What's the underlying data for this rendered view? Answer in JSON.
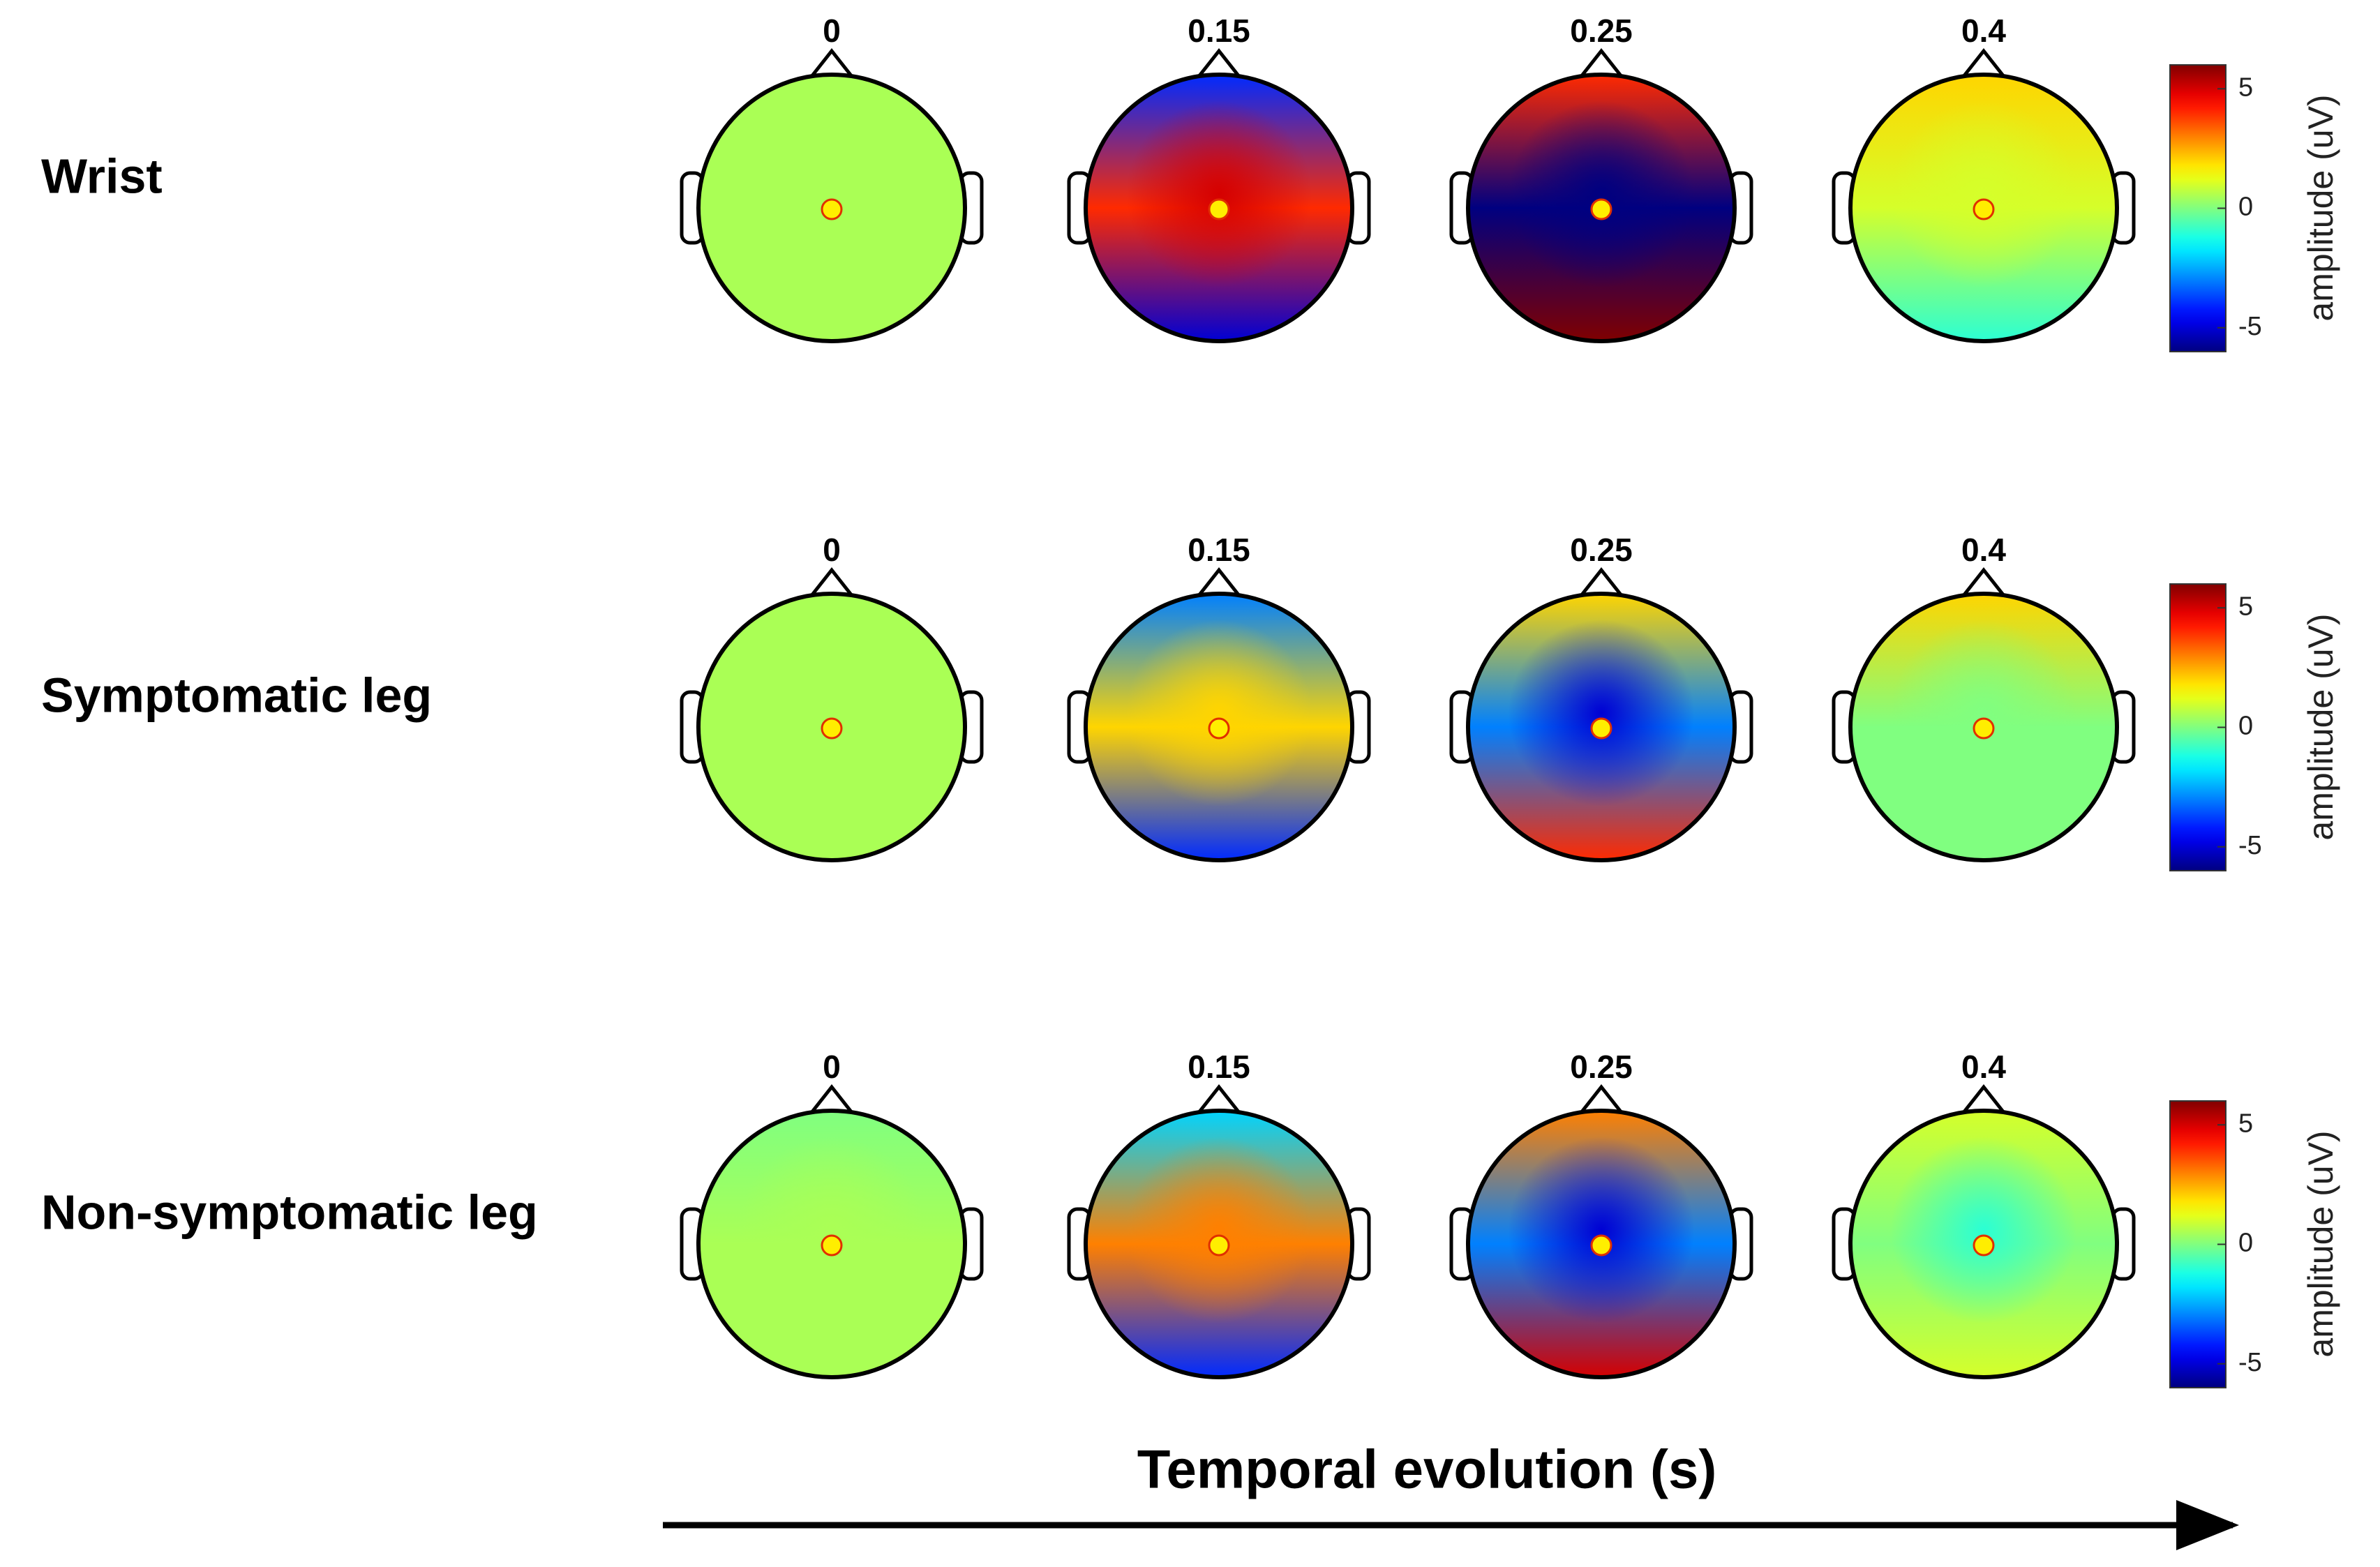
{
  "rows": [
    {
      "label": "Wrist",
      "maps": [
        {
          "time": 0,
          "front": 0.5,
          "middle": 0.5,
          "back": 0.5,
          "centre": 0.5
        },
        {
          "time": 0.15,
          "front": -4,
          "middle": 4,
          "back": -5,
          "centre": 5
        },
        {
          "time": 0.25,
          "front": 4,
          "middle": -6,
          "back": 6,
          "centre": -6
        },
        {
          "time": 0.4,
          "front": 2,
          "middle": 1,
          "back": -1,
          "centre": 1
        }
      ],
      "colorbar": {
        "ylim": [
          -6,
          6
        ],
        "yticks": [
          -5,
          0,
          5
        ],
        "label": "amplitude (uV)"
      }
    },
    {
      "label": "Symptomatic leg",
      "maps": [
        {
          "time": 0,
          "front": 0.5,
          "middle": 0.5,
          "back": 0.5,
          "centre": 0.5
        },
        {
          "time": 0.15,
          "front": -3,
          "middle": 2,
          "back": -4,
          "centre": 2
        },
        {
          "time": 0.25,
          "front": 2,
          "middle": -3,
          "back": 4,
          "centre": -5
        },
        {
          "time": 0.4,
          "front": 2,
          "middle": 0,
          "back": 0,
          "centre": 0
        }
      ],
      "colorbar": {
        "ylim": [
          -6,
          6
        ],
        "yticks": [
          -5,
          0,
          5
        ],
        "label": "amplitude (uV)"
      }
    },
    {
      "label": "Non-symptomatic leg",
      "maps": [
        {
          "time": 0,
          "front": 0,
          "middle": 0.5,
          "back": 0.5,
          "centre": 0.5
        },
        {
          "time": 0.15,
          "front": -2,
          "middle": 3,
          "back": -4,
          "centre": 3
        },
        {
          "time": 0.25,
          "front": 3,
          "middle": -3,
          "back": 5,
          "centre": -5
        },
        {
          "time": 0.4,
          "front": 1,
          "middle": 0,
          "back": 1,
          "centre": -1
        }
      ],
      "colorbar": {
        "ylim": [
          -6,
          6
        ],
        "yticks": [
          -5,
          0,
          5
        ],
        "label": "amplitude (uV)"
      }
    }
  ],
  "xlabel": "Temporal evolution (s)"
}
